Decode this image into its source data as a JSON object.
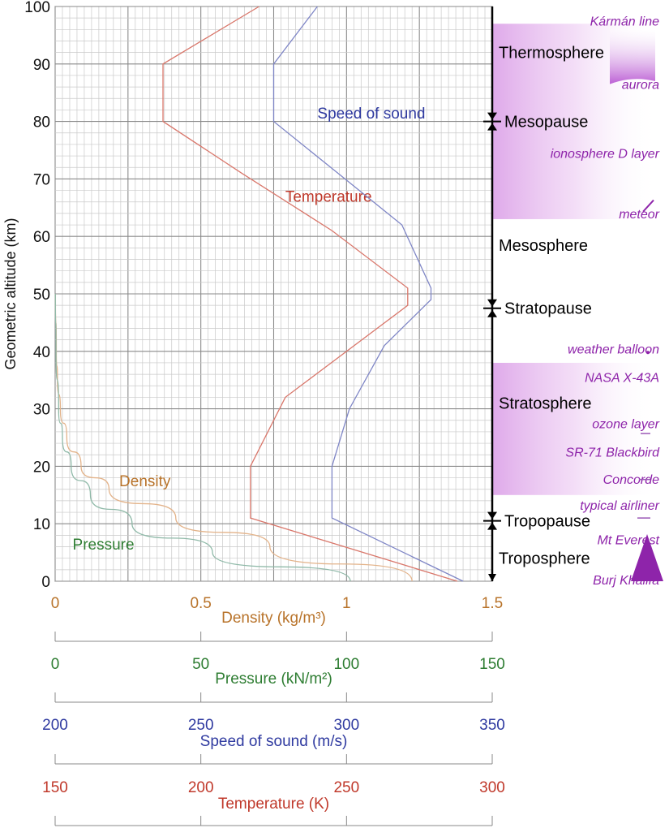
{
  "chart_data": {
    "type": "line",
    "ylabel": "Geometric altitude (km)",
    "ylim": [
      0,
      100
    ],
    "y_ticks": [
      "0",
      "10",
      "20",
      "30",
      "40",
      "50",
      "60",
      "70",
      "80",
      "90",
      "100"
    ],
    "grid": true,
    "axes": [
      {
        "key": "density",
        "label": "Density (kg/m³)",
        "color": "#b8732a",
        "range": [
          0,
          1.5
        ],
        "ticks": [
          {
            "v": 0,
            "t": "0"
          },
          {
            "v": 0.5,
            "t": "0.5"
          },
          {
            "v": 1,
            "t": "1"
          },
          {
            "v": 1.5,
            "t": "1.5"
          }
        ]
      },
      {
        "key": "pressure",
        "label": "Pressure (kN/m²)",
        "color": "#2e7d32",
        "range": [
          0,
          150
        ],
        "ticks": [
          {
            "v": 0,
            "t": "0"
          },
          {
            "v": 50,
            "t": "50"
          },
          {
            "v": 100,
            "t": "100"
          },
          {
            "v": 150,
            "t": "150"
          }
        ]
      },
      {
        "key": "speed",
        "label": "Speed of sound (m/s)",
        "color": "#2f3aa0",
        "range": [
          200,
          350
        ],
        "ticks": [
          {
            "v": 200,
            "t": "200"
          },
          {
            "v": 250,
            "t": "250"
          },
          {
            "v": 300,
            "t": "300"
          },
          {
            "v": 350,
            "t": "350"
          }
        ]
      },
      {
        "key": "temperature",
        "label": "Temperature (K)",
        "color": "#c0392b",
        "range": [
          150,
          300
        ],
        "ticks": [
          {
            "v": 150,
            "t": "150"
          },
          {
            "v": 200,
            "t": "200"
          },
          {
            "v": 250,
            "t": "250"
          },
          {
            "v": 300,
            "t": "300"
          }
        ]
      }
    ],
    "series": [
      {
        "name": "Temperature",
        "axis": "temperature",
        "color": "#d9776b",
        "label_text": "Temperature",
        "label_at": [
          229,
          66
        ],
        "points": [
          [
            288,
            0
          ],
          [
            217,
            11
          ],
          [
            217,
            20
          ],
          [
            229,
            32
          ],
          [
            271,
            48
          ],
          [
            271,
            51
          ],
          [
            245,
            61
          ],
          [
            214,
            71
          ],
          [
            187,
            80
          ],
          [
            187,
            90
          ],
          [
            220,
            100
          ]
        ]
      },
      {
        "name": "Speed of sound",
        "axis": "speed",
        "color": "#7f86c6",
        "label_text": "Speed of sound",
        "label_at": [
          290,
          80.5
        ],
        "points": [
          [
            340,
            0
          ],
          [
            295,
            11
          ],
          [
            295,
            20
          ],
          [
            301,
            30
          ],
          [
            313,
            41
          ],
          [
            329,
            49
          ],
          [
            329,
            51
          ],
          [
            319,
            62
          ],
          [
            297,
            71
          ],
          [
            275,
            80
          ],
          [
            275,
            90
          ],
          [
            290,
            100
          ]
        ]
      },
      {
        "name": "Density",
        "axis": "density",
        "color": "#e3b38a",
        "label_text": "Density",
        "label_at": [
          0.22,
          16.5
        ],
        "points": [
          [
            1.225,
            0
          ],
          [
            0.737,
            6
          ],
          [
            0.414,
            11
          ],
          [
            0.185,
            16
          ],
          [
            0.089,
            20
          ],
          [
            0.04,
            25
          ],
          [
            0.018,
            30
          ],
          [
            0.008,
            35
          ],
          [
            0.004,
            40
          ],
          [
            0.001,
            50
          ]
        ]
      },
      {
        "name": "Pressure",
        "axis": "pressure",
        "color": "#8fb9a8",
        "label_text": "Pressure",
        "label_at": [
          6,
          5.5
        ],
        "points": [
          [
            101.3,
            0
          ],
          [
            54,
            5
          ],
          [
            26.4,
            10
          ],
          [
            12.1,
            15
          ],
          [
            5.5,
            20
          ],
          [
            2.5,
            25
          ],
          [
            1.2,
            30
          ],
          [
            0.3,
            40
          ],
          [
            0.08,
            50
          ]
        ]
      }
    ],
    "layers": [
      {
        "name": "Thermosphere",
        "alt": 92
      },
      {
        "name": "Mesopause",
        "alt": 80,
        "boundary": true
      },
      {
        "name": "Mesosphere",
        "alt": 58.5
      },
      {
        "name": "Stratopause",
        "alt": 47.5,
        "boundary": true
      },
      {
        "name": "Stratosphere",
        "alt": 31
      },
      {
        "name": "Tropopause",
        "alt": 10.5,
        "boundary": true
      },
      {
        "name": "Troposphere",
        "alt": 4
      }
    ],
    "annotations": [
      {
        "text": "Kármán line",
        "alt": 97.5
      },
      {
        "text": "aurora",
        "alt": 86.5
      },
      {
        "text": "ionosphere D layer",
        "alt": 74.5
      },
      {
        "text": "meteor",
        "alt": 64
      },
      {
        "text": "weather balloon",
        "alt": 40.5
      },
      {
        "text": "NASA X-43A",
        "alt": 35.5
      },
      {
        "text": "ozone layer",
        "alt": 27.5
      },
      {
        "text": "SR-71 Blackbird",
        "alt": 22.5
      },
      {
        "text": "Concorde",
        "alt": 17.8
      },
      {
        "text": "typical airliner",
        "alt": 13.3
      },
      {
        "text": "Mt Everest",
        "alt": 7.3
      },
      {
        "text": "Burj Khalifa",
        "alt": 0.3
      }
    ],
    "colors": {
      "annotation": "#8e24aa",
      "band": "#d99ae6",
      "boundary": "#000000"
    }
  }
}
